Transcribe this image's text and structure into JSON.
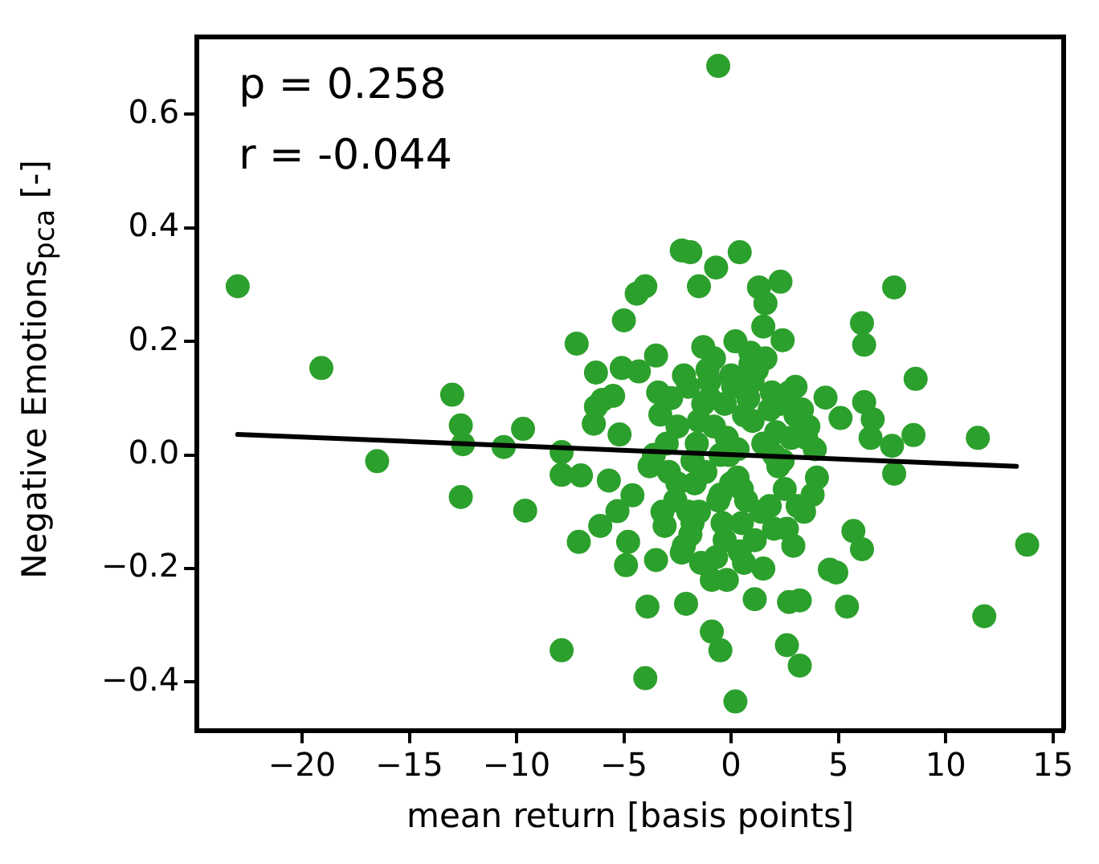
{
  "chart_data": {
    "type": "scatter",
    "xlabel": "mean return [basis points]",
    "ylabel": "Negative Emotions$_{pca}$ [-]",
    "annotations": [
      "p = 0.258",
      "r = -0.044"
    ],
    "xlim": [
      -24.9,
      15.5
    ],
    "ylim": [
      -0.485,
      0.736
    ],
    "xticks": [
      -20,
      -15,
      -10,
      -5,
      0,
      5,
      10,
      15
    ],
    "yticks": [
      -0.4,
      -0.2,
      {
        "value": 0,
        "label": "0.0"
      },
      0.2,
      0.4,
      0.6
    ],
    "grid": false,
    "legend": false,
    "marker": "circle",
    "series": [
      {
        "color": "#2ca02c",
        "x": [
          -23.0,
          -19.1,
          -16.5,
          -13.0,
          -12.6,
          -12.5,
          -12.6,
          -10.6,
          -9.7,
          -9.6,
          -7.9,
          -7.9,
          -7.2,
          -7.9,
          -7.0,
          -7.1,
          -6.3,
          -6.3,
          -6.4,
          -6.1,
          -6.0,
          -5.7,
          -5.3,
          -5.1,
          -5.5,
          -5.2,
          -4.9,
          -4.8,
          -4.3,
          -3.9,
          -4.0,
          -5.0,
          -4.4,
          -4.0,
          -3.5,
          -3.3,
          -4.6,
          -3.5,
          -3.1,
          -2.3,
          -2.1,
          -2.3,
          -1.9,
          -1.5,
          -0.9,
          -0.5,
          0.2,
          -0.6,
          0.4,
          -0.7,
          1.3,
          2.3,
          1.6,
          1.5,
          2.4,
          1.1,
          2.7,
          3.2,
          2.6,
          3.2,
          4.6,
          4.9,
          5.4,
          5.7,
          6.1,
          6.1,
          6.2,
          6.2,
          6.6,
          7.5,
          7.6,
          7.6,
          8.5,
          8.6,
          11.5,
          11.8,
          13.8,
          4.4,
          5.1,
          6.5,
          -3.0,
          -2.8,
          -2.6,
          -2.2,
          -1.8,
          -1.5,
          -1.2,
          -0.8,
          -0.3,
          0.1,
          0.5,
          0.9,
          1.4,
          1.8,
          2.2,
          2.7,
          3.1,
          3.6,
          4.0,
          -2.9,
          -1.9,
          -1.3,
          -0.7,
          -0.2,
          0.4,
          1.0,
          2.1,
          2.6,
          3.3,
          3.8,
          -2.5,
          -1.7,
          -1.1,
          -0.4,
          0.3,
          0.8,
          1.5,
          2.4,
          3.0,
          -2.0,
          -1.0,
          -0.1,
          0.7,
          1.9,
          2.9,
          -1.6,
          -0.5,
          0.6,
          -1.3,
          0.0,
          -0.9,
          0.9,
          -3.6,
          3.9,
          -3.8,
          -2.5,
          -1.5,
          -0.5,
          0.5,
          1.5,
          2.5,
          3.5,
          -2.0,
          -1.0,
          0.0,
          1.0,
          2.0,
          3.0,
          -3.2,
          -1.4,
          -0.2,
          0.6,
          1.2,
          2.8,
          3.4,
          -0.8,
          0.3,
          1.8,
          2.3,
          -1.8,
          -0.3,
          1.1,
          -2.2,
          1.6,
          0.2,
          -0.6,
          2.0,
          -3.4
        ],
        "values": [
          0.297,
          0.153,
          -0.011,
          0.106,
          0.052,
          0.019,
          -0.074,
          0.014,
          0.046,
          -0.098,
          0.005,
          -0.344,
          0.196,
          -0.035,
          -0.036,
          -0.153,
          0.145,
          0.085,
          0.055,
          -0.125,
          0.097,
          -0.045,
          -0.099,
          0.153,
          0.104,
          0.036,
          -0.194,
          -0.153,
          0.147,
          -0.267,
          -0.393,
          0.237,
          0.284,
          0.297,
          0.175,
          0.071,
          -0.071,
          -0.185,
          -0.125,
          -0.172,
          -0.262,
          0.36,
          0.357,
          0.297,
          -0.311,
          -0.344,
          -0.434,
          0.685,
          0.357,
          0.33,
          0.295,
          0.305,
          0.267,
          0.226,
          0.202,
          -0.254,
          -0.259,
          -0.256,
          -0.335,
          -0.371,
          -0.202,
          -0.207,
          -0.267,
          -0.134,
          -0.166,
          0.232,
          0.194,
          0.093,
          0.063,
          0.016,
          -0.033,
          0.295,
          0.035,
          0.134,
          0.03,
          -0.284,
          -0.158,
          0.101,
          0.065,
          0.03,
          0.02,
          0.1,
          -0.08,
          0.14,
          -0.12,
          0.06,
          -0.03,
          0.17,
          -0.15,
          0.12,
          -0.06,
          0.16,
          -0.1,
          0.08,
          -0.02,
          0.11,
          -0.09,
          0.05,
          -0.04,
          -0.03,
          -0.14,
          0.09,
          -0.18,
          0.03,
          -0.17,
          0.13,
          0.04,
          -0.13,
          0.08,
          -0.07,
          0.05,
          -0.05,
          0.15,
          -0.12,
          0.01,
          0.1,
          -0.2,
          -0.01,
          0.07,
          -0.1,
          0.13,
          0.0,
          -0.08,
          0.11,
          -0.16,
          0.02,
          -0.07,
          0.07,
          0.19,
          -0.05,
          -0.22,
          0.18,
          0.0,
          0.01,
          -0.02,
          -0.05,
          -0.1,
          0.0,
          -0.12,
          0.02,
          -0.06,
          0.03,
          0.12,
          0.1,
          0.14,
          0.06,
          -0.13,
          0.12,
          -0.1,
          -0.19,
          -0.22,
          -0.19,
          0.15,
          0.03,
          -0.1,
          0.05,
          -0.04,
          -0.09,
          0.09,
          -0.01,
          0.09,
          -0.15,
          -0.16,
          0.17,
          0.2,
          -0.08,
          0.0,
          0.11
        ]
      },
      {
        "type": "line",
        "color": "#000000",
        "marker": "none",
        "x": [
          -23.0,
          13.3
        ],
        "values": [
          0.036,
          -0.02
        ]
      }
    ]
  }
}
